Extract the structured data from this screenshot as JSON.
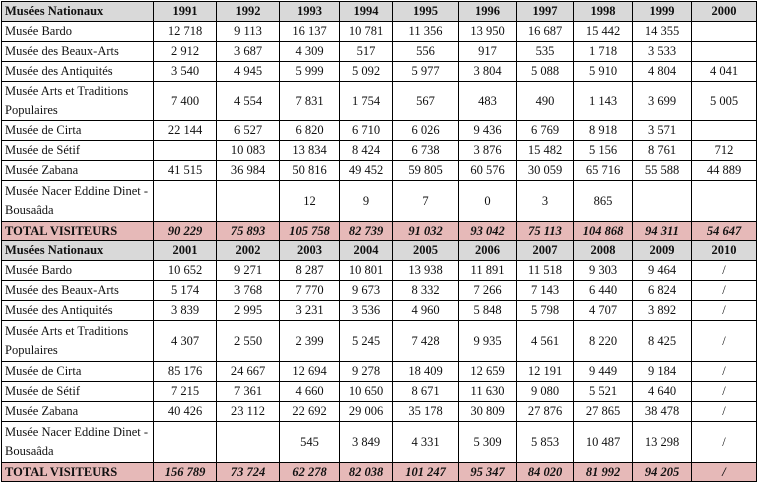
{
  "header_label": "Musées Nationaux",
  "total_label": "TOTAL VISITEURS",
  "museums": [
    "Musée Bardo",
    "Musée  des Beaux-Arts",
    "Musée des Antiquités",
    "Musée Arts et Traditions Populaires",
    "Musée  de Cirta",
    "Musée  de Sétif",
    "Musée Zabana",
    "Musée  Nacer Eddine Dinet - Bousaâda"
  ],
  "sections": [
    {
      "years": [
        "1991",
        "1992",
        "1993",
        "1994",
        "1995",
        "1996",
        "1997",
        "1998",
        "1999",
        "2000"
      ],
      "rows": [
        [
          "12 718",
          "9 113",
          "16 137",
          "10 781",
          "11 356",
          "13 950",
          "16 687",
          "15 442",
          "14 355",
          ""
        ],
        [
          "2 912",
          "3 687",
          "4 309",
          "517",
          "556",
          "917",
          "535",
          "1 718",
          "3 533",
          ""
        ],
        [
          "3 540",
          "4 945",
          "5 999",
          "5 092",
          "5 977",
          "3 804",
          "5 088",
          "5 910",
          "4 804",
          "4 041"
        ],
        [
          "7 400",
          "4 554",
          "7 831",
          "1 754",
          "567",
          "483",
          "490",
          "1 143",
          "3 699",
          "5 005"
        ],
        [
          "22 144",
          "6 527",
          "6 820",
          "6 710",
          "6 026",
          "9 436",
          "6 769",
          "8 918",
          "3 571",
          ""
        ],
        [
          "",
          "10 083",
          "13 834",
          "8 424",
          "6 738",
          "3 876",
          "15 482",
          "5 156",
          "8 761",
          "712"
        ],
        [
          "41 515",
          "36 984",
          "50 816",
          "49 452",
          "59 805",
          "60 576",
          "30 059",
          "65 716",
          "55 588",
          "44 889"
        ],
        [
          "",
          "",
          "12",
          "9",
          "7",
          "0",
          "3",
          "865",
          "",
          ""
        ]
      ],
      "totals": [
        "90 229",
        "75 893",
        "105 758",
        "82 739",
        "91 032",
        "93 042",
        "75 113",
        "104 868",
        "94 311",
        "54 647"
      ]
    },
    {
      "years": [
        "2001",
        "2002",
        "2003",
        "2004",
        "2005",
        "2006",
        "2007",
        "2008",
        "2009",
        "2010"
      ],
      "rows": [
        [
          "10 652",
          "9 271",
          "8 287",
          "10 801",
          "13 938",
          "11 891",
          "11 518",
          "9 303",
          "9 464",
          "/"
        ],
        [
          "5 174",
          "3 768",
          "7 770",
          "9 673",
          "8 332",
          "7 266",
          "7 143",
          "6 440",
          "6 824",
          "/"
        ],
        [
          "3 839",
          "2 995",
          "3 231",
          "3 536",
          "4 960",
          "5 848",
          "5 798",
          "4 707",
          "3 892",
          "/"
        ],
        [
          "4 307",
          "2 550",
          "2 399",
          "5 245",
          "7 428",
          "9 935",
          "4 561",
          "8 220",
          "8 425",
          "/"
        ],
        [
          "85 176",
          "24 667",
          "12 694",
          "9 278",
          "18 409",
          "12 659",
          "12 191",
          "9 449",
          "9 184",
          "/"
        ],
        [
          "7 215",
          "7 361",
          "4 660",
          "10 650",
          "8 671",
          "11 630",
          "9 080",
          "5 521",
          "4 640",
          "/"
        ],
        [
          "40 426",
          "23 112",
          "22 692",
          "29 006",
          "35 178",
          "30 809",
          "27 876",
          "27 865",
          "38 478",
          "/"
        ],
        [
          "",
          "",
          "545",
          "3 849",
          "4 331",
          "5 309",
          "5 853",
          "10 487",
          "13 298",
          "/"
        ]
      ],
      "totals": [
        "156 789",
        "73 724",
        "62 278",
        "82 038",
        "101 247",
        "95 347",
        "84 020",
        "81 992",
        "94 205",
        "/"
      ]
    }
  ]
}
